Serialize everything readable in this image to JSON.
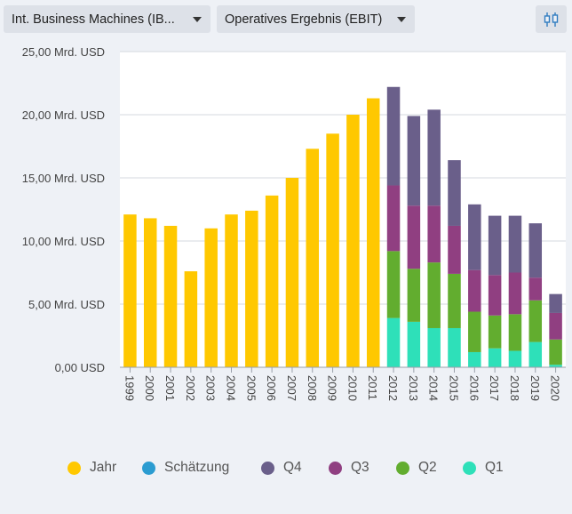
{
  "toolbar": {
    "company_select": "Int. Business Machines (IB...",
    "metric_select": "Operatives Ergebnis (EBIT)",
    "chart_type_icon": "candlestick-chart-icon"
  },
  "colors": {
    "Jahr": "#ffc800",
    "Schätzung": "#2b9cd1",
    "Q4": "#6a5f8a",
    "Q3": "#903f81",
    "Q2": "#62ad2f",
    "Q1": "#2ee0b9"
  },
  "legend": [
    {
      "key": "Jahr",
      "label": "Jahr"
    },
    {
      "key": "Schätzung",
      "label": "Schätzung"
    },
    {
      "key": "Q4",
      "label": "Q4"
    },
    {
      "key": "Q3",
      "label": "Q3"
    },
    {
      "key": "Q2",
      "label": "Q2"
    },
    {
      "key": "Q1",
      "label": "Q1"
    }
  ],
  "chart_data": {
    "type": "bar",
    "stacked": true,
    "categories": [
      "1999",
      "2000",
      "2001",
      "2002",
      "2003",
      "2004",
      "2005",
      "2006",
      "2007",
      "2008",
      "2009",
      "2010",
      "2011",
      "2012",
      "2013",
      "2014",
      "2015",
      "2016",
      "2017",
      "2018",
      "2019",
      "2020"
    ],
    "ylim": [
      0,
      25
    ],
    "yticks": [
      0,
      5,
      10,
      15,
      20,
      25
    ],
    "ytick_labels": [
      "0,00 USD",
      "5,00 Mrd. USD",
      "10,00 Mrd. USD",
      "15,00 Mrd. USD",
      "20,00 Mrd. USD",
      "25,00 Mrd. USD"
    ],
    "grid": true,
    "legend_position": "bottom",
    "series": [
      {
        "name": "Jahr",
        "values": [
          12.1,
          11.8,
          11.2,
          7.6,
          11.0,
          12.1,
          12.4,
          13.6,
          15.0,
          17.3,
          18.5,
          20.0,
          21.3,
          null,
          null,
          null,
          null,
          null,
          null,
          null,
          null,
          null
        ]
      },
      {
        "name": "Q1",
        "values": [
          null,
          null,
          null,
          null,
          null,
          null,
          null,
          null,
          null,
          null,
          null,
          null,
          null,
          3.9,
          3.6,
          3.1,
          3.1,
          1.2,
          1.5,
          1.3,
          2.0,
          0.2
        ]
      },
      {
        "name": "Q2",
        "values": [
          null,
          null,
          null,
          null,
          null,
          null,
          null,
          null,
          null,
          null,
          null,
          null,
          null,
          5.3,
          4.2,
          5.2,
          4.3,
          3.2,
          2.6,
          2.9,
          3.3,
          2.0
        ]
      },
      {
        "name": "Q3",
        "values": [
          null,
          null,
          null,
          null,
          null,
          null,
          null,
          null,
          null,
          null,
          null,
          null,
          null,
          5.2,
          5.0,
          4.5,
          3.8,
          3.3,
          3.2,
          3.3,
          1.8,
          2.1
        ]
      },
      {
        "name": "Q4",
        "values": [
          null,
          null,
          null,
          null,
          null,
          null,
          null,
          null,
          null,
          null,
          null,
          null,
          null,
          7.8,
          7.1,
          7.6,
          5.2,
          5.2,
          4.7,
          4.5,
          4.3,
          1.5
        ]
      },
      {
        "name": "Schätzung",
        "values": [
          null,
          null,
          null,
          null,
          null,
          null,
          null,
          null,
          null,
          null,
          null,
          null,
          null,
          null,
          null,
          null,
          null,
          null,
          null,
          null,
          null,
          null
        ]
      }
    ]
  }
}
